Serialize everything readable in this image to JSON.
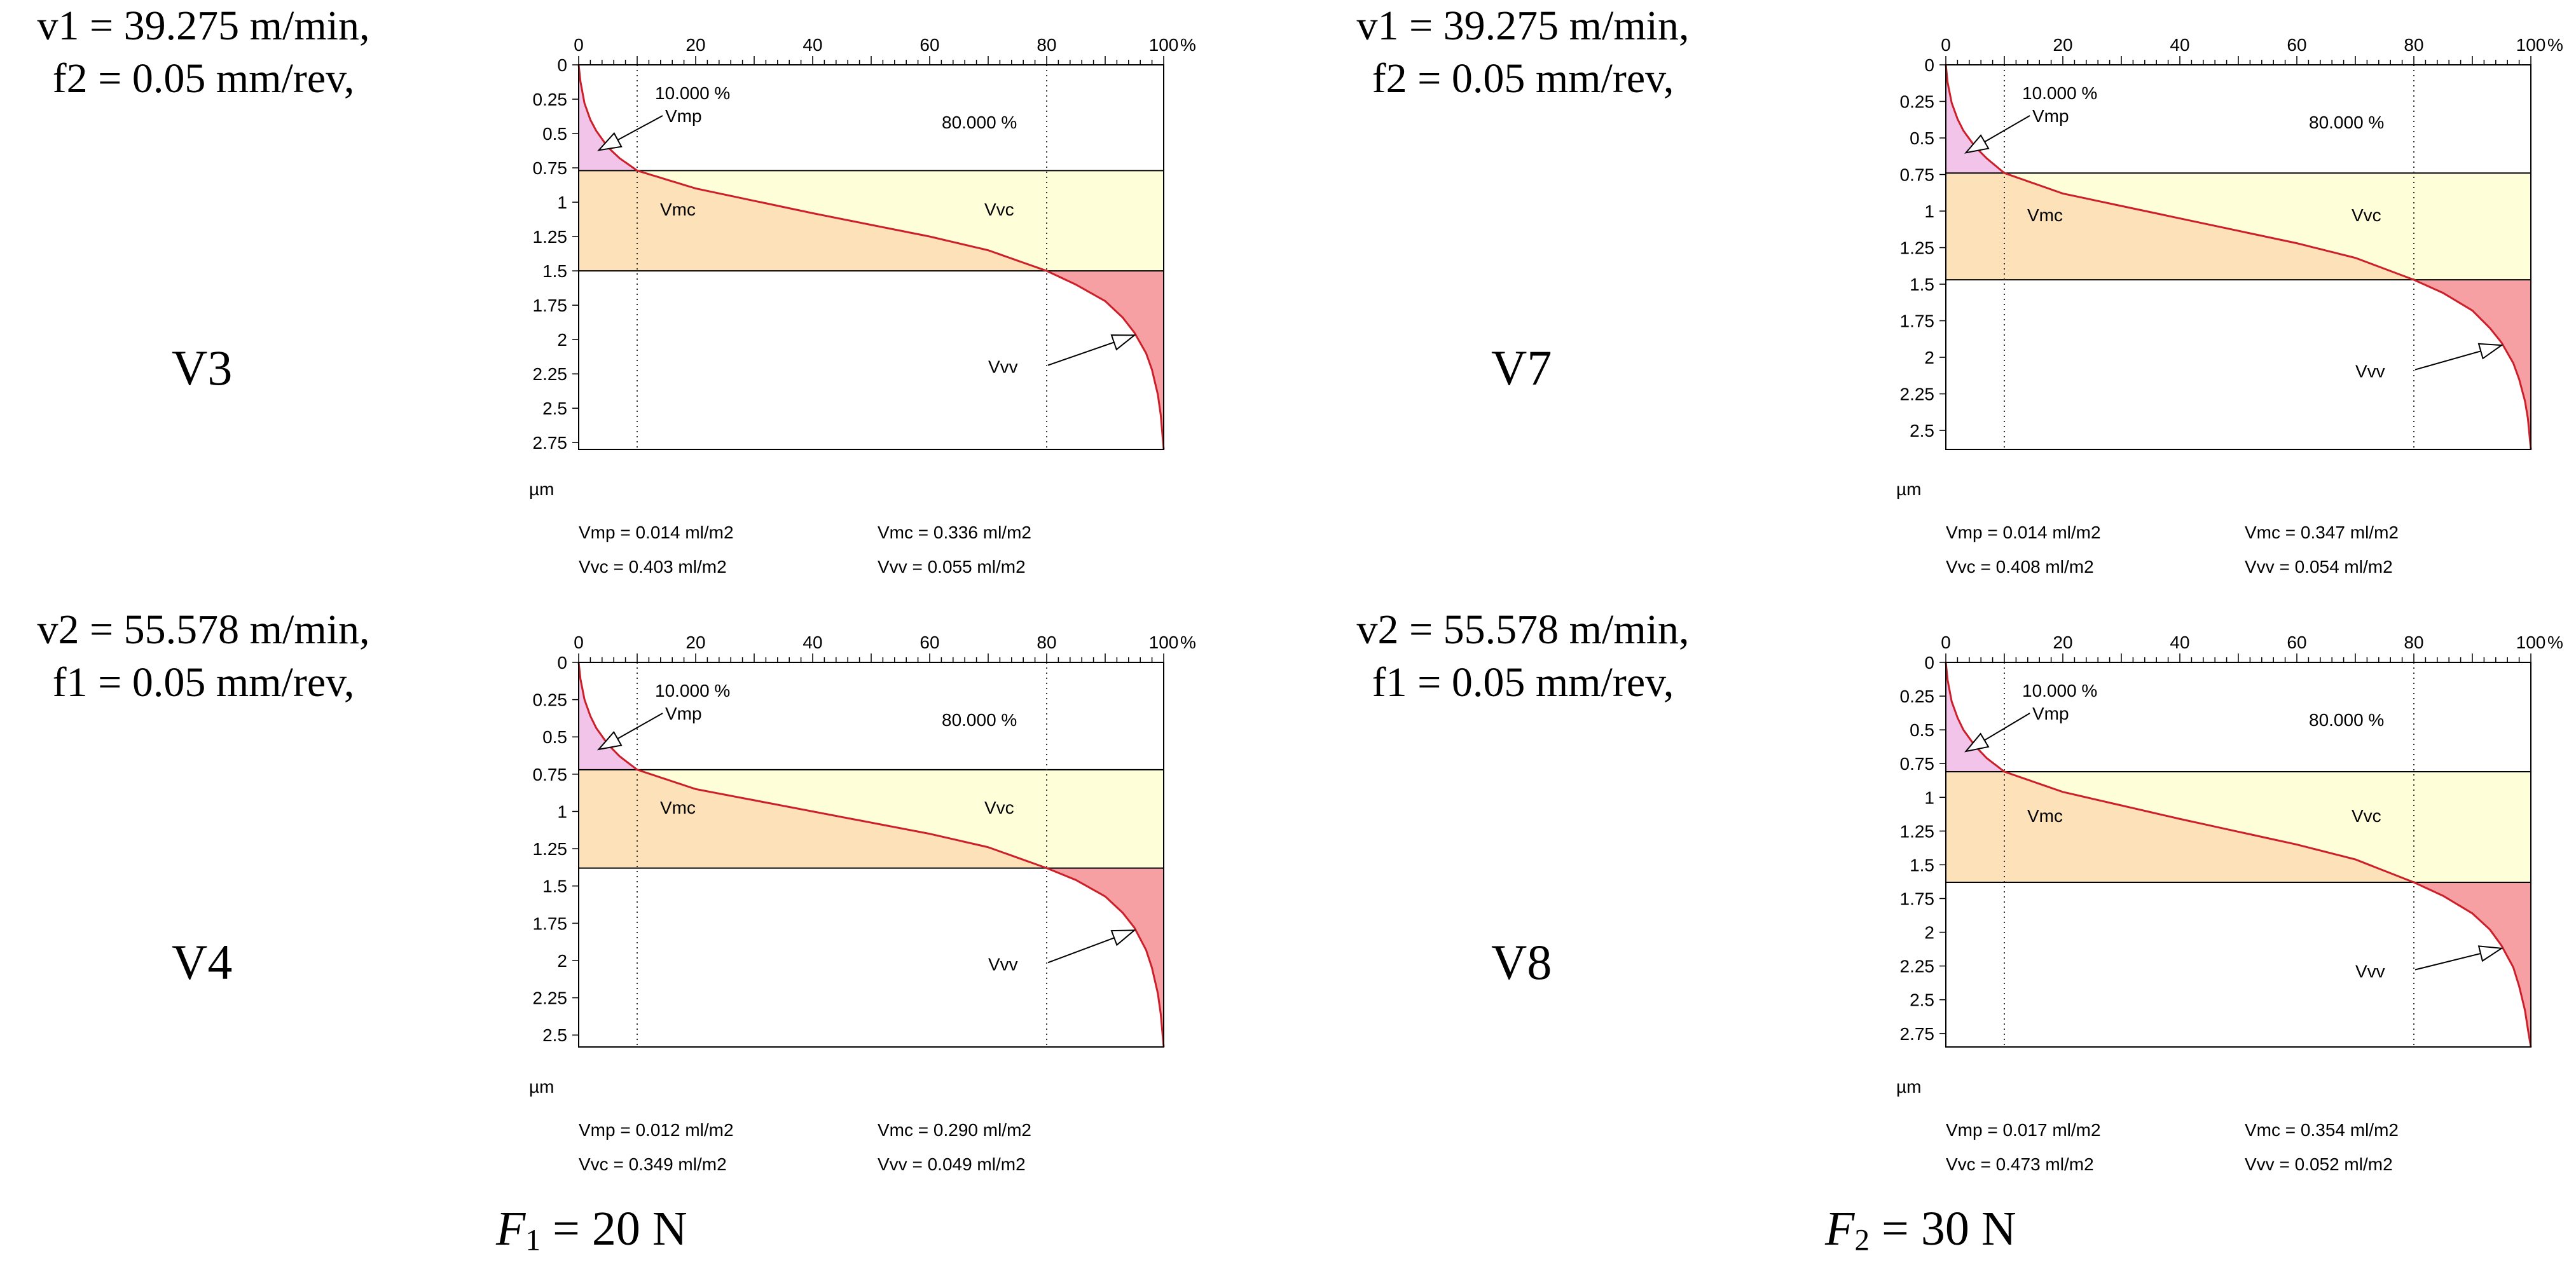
{
  "conditions": [
    {
      "line1": "v1 = 39.275 m/min,",
      "line2": "f2 = 0.05 mm/rev,"
    },
    {
      "line1": "v1 = 39.275 m/min,",
      "line2": "f2 = 0.05 mm/rev,"
    },
    {
      "line1": "v2 = 55.578 m/min,",
      "line2": "f1 = 0.05 mm/rev,"
    },
    {
      "line1": "v2 = 55.578 m/min,",
      "line2": "f1 = 0.05 mm/rev,"
    }
  ],
  "sample_labels": [
    "V3",
    "V7",
    "V4",
    "V8"
  ],
  "forces": [
    {
      "symbol": "F",
      "subscript": "1",
      "value": " = 20 N"
    },
    {
      "symbol": "F",
      "subscript": "2",
      "value": " = 30 N"
    }
  ],
  "colors": {
    "curve": "#cc1f2a",
    "vmp_fill": "#f2c4ea",
    "vmc_fill": "#fde1b8",
    "vvc_fill": "#fefed8",
    "vvv_fill": "#f6a0a4"
  },
  "chart_data": [
    {
      "type": "area",
      "title": "V3",
      "x_unit": "%",
      "y_unit": "µm",
      "xlim": [
        0,
        100
      ],
      "ylim": [
        0,
        2.8
      ],
      "x_ticks": [
        0,
        20,
        40,
        60,
        80,
        100
      ],
      "y_ticks": [
        0,
        0.25,
        0.5,
        0.75,
        1,
        1.25,
        1.5,
        1.75,
        2,
        2.25,
        2.5,
        2.75
      ],
      "thresholds": {
        "mr1": 10.0,
        "mr2": 80.0,
        "mr1_label": "10.000 %",
        "mr2_label": "80.000 %"
      },
      "curve": {
        "x": [
          0,
          0.3,
          1,
          2,
          3,
          5,
          7,
          10,
          20,
          40,
          60,
          70,
          80,
          85,
          90,
          93,
          95,
          97,
          98,
          99,
          99.5,
          100
        ],
        "y": [
          0,
          0.12,
          0.28,
          0.4,
          0.48,
          0.6,
          0.68,
          0.77,
          0.9,
          1.08,
          1.25,
          1.35,
          1.5,
          1.6,
          1.72,
          1.84,
          1.95,
          2.1,
          2.22,
          2.4,
          2.55,
          2.8
        ]
      },
      "core_band": [
        0.77,
        1.5
      ],
      "regions": [
        "Vmp",
        "Vmc",
        "Vvc",
        "Vvv"
      ],
      "results": [
        "Vmp = 0.014 ml/m2",
        "Vmc = 0.336 ml/m2",
        "Vvc = 0.403 ml/m2",
        "Vvv = 0.055 ml/m2"
      ]
    },
    {
      "type": "area",
      "title": "V7",
      "x_unit": "%",
      "y_unit": "µm",
      "xlim": [
        0,
        100
      ],
      "ylim": [
        0,
        2.63
      ],
      "x_ticks": [
        0,
        20,
        40,
        60,
        80,
        100
      ],
      "y_ticks": [
        0,
        0.25,
        0.5,
        0.75,
        1,
        1.25,
        1.5,
        1.75,
        2,
        2.25,
        2.5
      ],
      "thresholds": {
        "mr1": 10.0,
        "mr2": 80.0,
        "mr1_label": "10.000 %",
        "mr2_label": "80.000 %"
      },
      "curve": {
        "x": [
          0,
          0.3,
          1,
          2,
          3,
          5,
          7,
          10,
          20,
          40,
          60,
          70,
          80,
          85,
          90,
          93,
          95,
          97,
          98,
          99,
          99.5,
          100
        ],
        "y": [
          0,
          0.12,
          0.26,
          0.37,
          0.45,
          0.56,
          0.64,
          0.74,
          0.88,
          1.05,
          1.22,
          1.32,
          1.47,
          1.56,
          1.68,
          1.8,
          1.9,
          2.04,
          2.15,
          2.3,
          2.42,
          2.63
        ]
      },
      "core_band": [
        0.74,
        1.47
      ],
      "regions": [
        "Vmp",
        "Vmc",
        "Vvc",
        "Vvv"
      ],
      "results": [
        "Vmp = 0.014 ml/m2",
        "Vmc = 0.347 ml/m2",
        "Vvc = 0.408 ml/m2",
        "Vvv = 0.054 ml/m2"
      ]
    },
    {
      "type": "area",
      "title": "V4",
      "x_unit": "%",
      "y_unit": "µm",
      "xlim": [
        0,
        100
      ],
      "ylim": [
        0,
        2.58
      ],
      "x_ticks": [
        0,
        20,
        40,
        60,
        80,
        100
      ],
      "y_ticks": [
        0,
        0.25,
        0.5,
        0.75,
        1,
        1.25,
        1.5,
        1.75,
        2,
        2.25,
        2.5
      ],
      "thresholds": {
        "mr1": 10.0,
        "mr2": 80.0,
        "mr1_label": "10.000 %",
        "mr2_label": "80.000 %"
      },
      "curve": {
        "x": [
          0,
          0.3,
          1,
          2,
          3,
          5,
          7,
          10,
          20,
          40,
          60,
          70,
          80,
          85,
          90,
          93,
          95,
          97,
          98,
          99,
          99.5,
          100
        ],
        "y": [
          0,
          0.11,
          0.25,
          0.36,
          0.44,
          0.55,
          0.63,
          0.72,
          0.85,
          1.0,
          1.15,
          1.24,
          1.38,
          1.46,
          1.57,
          1.68,
          1.78,
          1.93,
          2.05,
          2.22,
          2.36,
          2.58
        ]
      },
      "core_band": [
        0.72,
        1.38
      ],
      "regions": [
        "Vmp",
        "Vmc",
        "Vvc",
        "Vvv"
      ],
      "results": [
        "Vmp = 0.012 ml/m2",
        "Vmc = 0.290 ml/m2",
        "Vvc = 0.349 ml/m2",
        "Vvv = 0.049 ml/m2"
      ]
    },
    {
      "type": "area",
      "title": "V8",
      "x_unit": "%",
      "y_unit": "µm",
      "xlim": [
        0,
        100
      ],
      "ylim": [
        0,
        2.85
      ],
      "x_ticks": [
        0,
        20,
        40,
        60,
        80,
        100
      ],
      "y_ticks": [
        0,
        0.25,
        0.5,
        0.75,
        1,
        1.25,
        1.5,
        1.75,
        2,
        2.25,
        2.5,
        2.75
      ],
      "thresholds": {
        "mr1": 10.0,
        "mr2": 80.0,
        "mr1_label": "10.000 %",
        "mr2_label": "80.000 %"
      },
      "curve": {
        "x": [
          0,
          0.3,
          1,
          2,
          3,
          5,
          7,
          10,
          20,
          40,
          60,
          70,
          80,
          85,
          90,
          93,
          95,
          97,
          98,
          99,
          99.5,
          100
        ],
        "y": [
          0,
          0.13,
          0.29,
          0.41,
          0.5,
          0.62,
          0.71,
          0.81,
          0.96,
          1.16,
          1.35,
          1.46,
          1.63,
          1.73,
          1.86,
          1.98,
          2.1,
          2.26,
          2.4,
          2.58,
          2.72,
          2.85
        ]
      },
      "core_band": [
        0.81,
        1.63
      ],
      "regions": [
        "Vmp",
        "Vmc",
        "Vvc",
        "Vvv"
      ],
      "results": [
        "Vmp = 0.017 ml/m2",
        "Vmc = 0.354 ml/m2",
        "Vvc = 0.473 ml/m2",
        "Vvv = 0.052 ml/m2"
      ]
    }
  ]
}
